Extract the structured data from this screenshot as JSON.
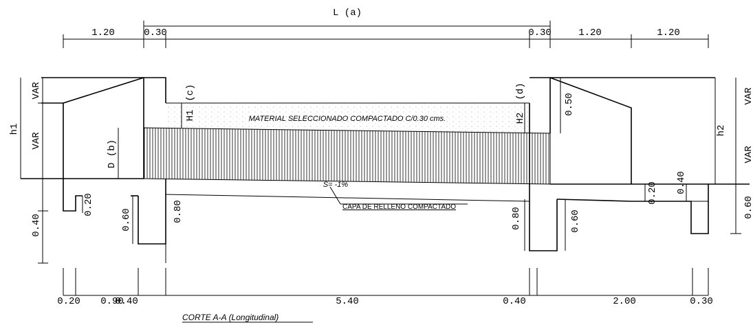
{
  "title": "CORTE A-A (Longitudinal)",
  "top_dimensions": {
    "span": "L (a)",
    "segments": [
      "1.20",
      "0.30",
      "0.30",
      "1.20",
      "1.20"
    ]
  },
  "left_dimensions": {
    "overall": "h1",
    "segments": [
      "VAR",
      "VAR",
      "0.40"
    ]
  },
  "right_dimensions": {
    "overall": "h2",
    "segments": [
      "VAR",
      "VAR",
      "0.60"
    ]
  },
  "bottom_dimensions": [
    "0.20",
    "0.90",
    "0.40",
    "5.40",
    "0.40",
    "2.00",
    "0.30"
  ],
  "pipe": {
    "diameter": "D (b)",
    "slope": "S= -1%"
  },
  "fill": {
    "label": "MATERIAL SELECCIONADO COMPACTADO C/0.30 cms.",
    "inlet_height": "H1",
    "inlet_note": "(c)",
    "outlet_height": "H2",
    "outlet_note": "(d)",
    "top_offset": "0.50"
  },
  "base_layer": "CAPA DE RELLENO COMPACTADO",
  "footing_dimensions": {
    "left": [
      "0.20",
      "0.60",
      "0.80"
    ],
    "right": [
      "0.80",
      "0.60",
      "0.20",
      "0.40"
    ]
  }
}
